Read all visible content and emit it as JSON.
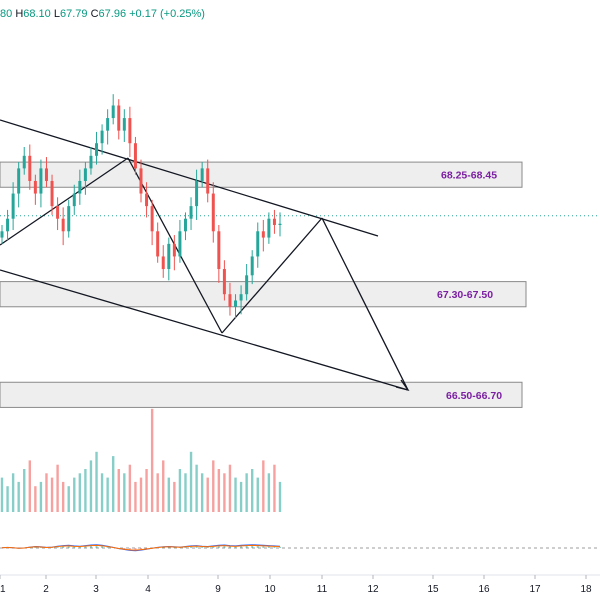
{
  "header": {
    "open_fragment": "80",
    "high_label": "H",
    "high": "68.10",
    "low_label": "L",
    "low": "67.79",
    "close_label": "C",
    "close": "67.96",
    "change": "+0.17 (+0.25%)"
  },
  "chart_data": {
    "type": "candlestick",
    "title": "",
    "xlabel": "",
    "ylabel": "",
    "x_ticks": [
      "1",
      "2",
      "3",
      "4",
      "9",
      "10",
      "11",
      "12",
      "15",
      "16",
      "17",
      "18"
    ],
    "price_range": [
      66.4,
      69.5
    ],
    "zones": [
      {
        "low": 68.25,
        "high": 68.45,
        "label": "68.25-68.45"
      },
      {
        "low": 67.3,
        "high": 67.5,
        "label": "67.30-67.50"
      },
      {
        "low": 66.5,
        "high": 66.7,
        "label": "66.50-66.70"
      }
    ],
    "last_price": 67.96,
    "candles_close": [
      67.9,
      68.0,
      68.2,
      68.4,
      68.5,
      68.3,
      68.2,
      68.4,
      68.3,
      68.1,
      68.0,
      67.9,
      68.1,
      68.2,
      68.3,
      68.4,
      68.5,
      68.6,
      68.7,
      68.8,
      68.9,
      68.7,
      68.8,
      68.6,
      68.4,
      68.2,
      68.1,
      67.9,
      67.7,
      67.6,
      67.8,
      67.7,
      67.9,
      68.0,
      68.1,
      68.3,
      68.4,
      68.2,
      67.9,
      67.6,
      67.4,
      67.3,
      67.35,
      67.4,
      67.55,
      67.7,
      67.9,
      67.85,
      68.0,
      67.95,
      67.96
    ],
    "volume": [
      8,
      6,
      9,
      7,
      10,
      12,
      6,
      7,
      9,
      8,
      11,
      7,
      6,
      8,
      9,
      10,
      12,
      14,
      9,
      8,
      13,
      10,
      9,
      11,
      7,
      8,
      10,
      24,
      9,
      12,
      8,
      7,
      10,
      9,
      14,
      11,
      9,
      8,
      12,
      10,
      9,
      11,
      8,
      7,
      9,
      10,
      8,
      12,
      9,
      11,
      7
    ],
    "oscillator": [
      0.1,
      0.2,
      0.1,
      -0.1,
      0.0,
      0.3,
      0.5,
      0.4,
      0.2,
      0.3,
      0.6,
      0.8,
      0.9,
      0.7,
      0.6,
      0.8,
      1.0,
      1.1,
      0.9,
      0.6,
      0.2,
      -0.2,
      -0.5,
      -0.8,
      -0.9,
      -0.7,
      -0.4,
      -0.1,
      0.2,
      0.4,
      0.5,
      0.4,
      0.3,
      0.5,
      0.7,
      0.8,
      0.6,
      0.5,
      0.7,
      0.9,
      1.0,
      0.8,
      0.7,
      0.9,
      1.0,
      1.1,
      1.0,
      0.9,
      0.8,
      0.7,
      0.6
    ]
  },
  "colors": {
    "up": "#26a69a",
    "down": "#ef5350",
    "line": "#131722",
    "zone_fill": "#e0e0e0",
    "zone_text": "#7b1fa2"
  }
}
